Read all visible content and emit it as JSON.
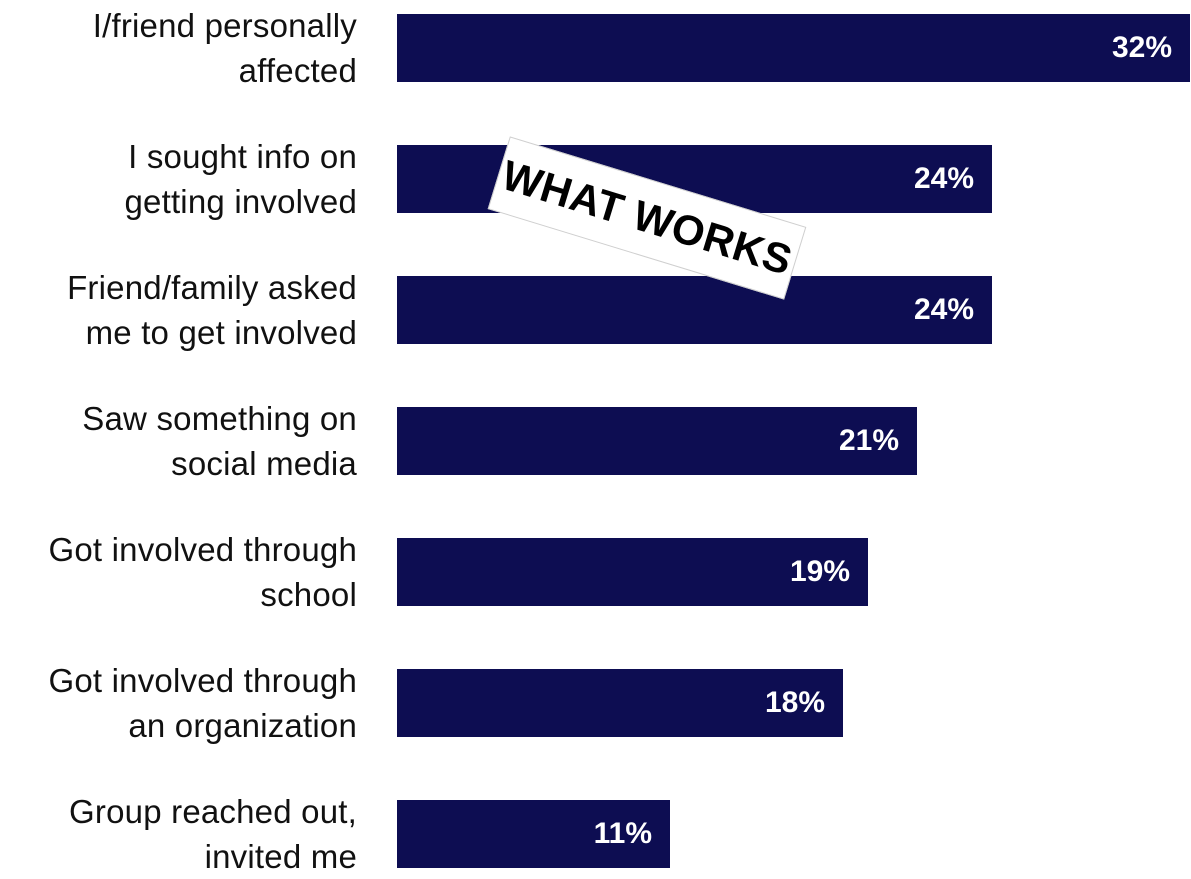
{
  "chart_data": {
    "type": "bar",
    "orientation": "horizontal",
    "categories": [
      [
        "I/friend personally",
        "affected"
      ],
      [
        "I sought info on",
        "getting involved"
      ],
      [
        "Friend/family asked",
        "me to get involved"
      ],
      [
        "Saw something on",
        "social media"
      ],
      [
        "Got involved through",
        "school"
      ],
      [
        "Got involved through",
        "an organization"
      ],
      [
        "Group reached out,",
        "invited me"
      ]
    ],
    "values": [
      32,
      24,
      24,
      21,
      19,
      18,
      11
    ],
    "value_labels": [
      "32%",
      "24%",
      "24%",
      "21%",
      "19%",
      "18%",
      "11%"
    ],
    "xlim": [
      0,
      32
    ],
    "title": "",
    "xlabel": "",
    "ylabel": "",
    "grid": false,
    "legend": "none",
    "bar_color": "#0d0d52",
    "value_label_color": "#ffffff",
    "annotation": "WHAT WORKS"
  }
}
